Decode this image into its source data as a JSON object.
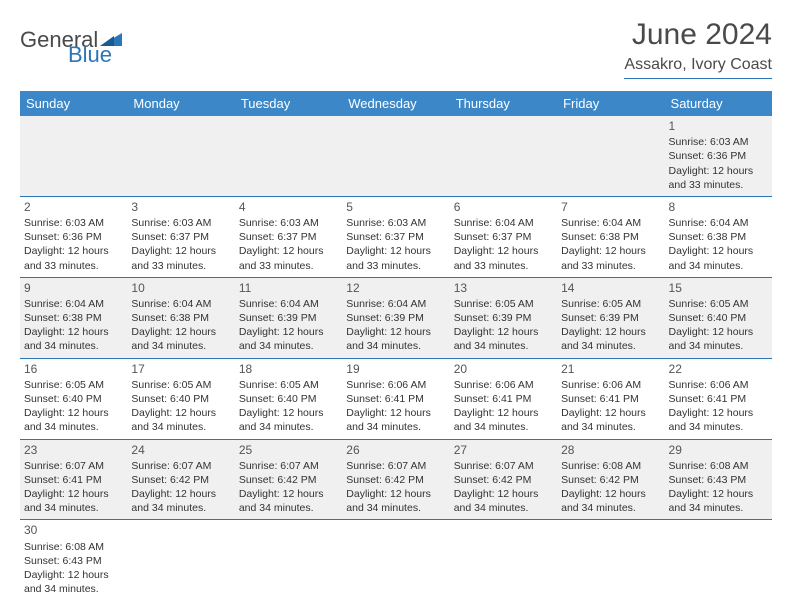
{
  "logo": {
    "general": "General",
    "blue": "Blue"
  },
  "title": "June 2024",
  "subtitle": "Assakro, Ivory Coast",
  "colors": {
    "header_bg": "#3b87c8",
    "accent": "#2a76b8",
    "row_alt": "#f0f0f0",
    "text": "#333333"
  },
  "day_headers": [
    "Sunday",
    "Monday",
    "Tuesday",
    "Wednesday",
    "Thursday",
    "Friday",
    "Saturday"
  ],
  "weeks": [
    [
      null,
      null,
      null,
      null,
      null,
      null,
      {
        "n": "1",
        "sr": "Sunrise: 6:03 AM",
        "ss": "Sunset: 6:36 PM",
        "d1": "Daylight: 12 hours",
        "d2": "and 33 minutes."
      }
    ],
    [
      {
        "n": "2",
        "sr": "Sunrise: 6:03 AM",
        "ss": "Sunset: 6:36 PM",
        "d1": "Daylight: 12 hours",
        "d2": "and 33 minutes."
      },
      {
        "n": "3",
        "sr": "Sunrise: 6:03 AM",
        "ss": "Sunset: 6:37 PM",
        "d1": "Daylight: 12 hours",
        "d2": "and 33 minutes."
      },
      {
        "n": "4",
        "sr": "Sunrise: 6:03 AM",
        "ss": "Sunset: 6:37 PM",
        "d1": "Daylight: 12 hours",
        "d2": "and 33 minutes."
      },
      {
        "n": "5",
        "sr": "Sunrise: 6:03 AM",
        "ss": "Sunset: 6:37 PM",
        "d1": "Daylight: 12 hours",
        "d2": "and 33 minutes."
      },
      {
        "n": "6",
        "sr": "Sunrise: 6:04 AM",
        "ss": "Sunset: 6:37 PM",
        "d1": "Daylight: 12 hours",
        "d2": "and 33 minutes."
      },
      {
        "n": "7",
        "sr": "Sunrise: 6:04 AM",
        "ss": "Sunset: 6:38 PM",
        "d1": "Daylight: 12 hours",
        "d2": "and 33 minutes."
      },
      {
        "n": "8",
        "sr": "Sunrise: 6:04 AM",
        "ss": "Sunset: 6:38 PM",
        "d1": "Daylight: 12 hours",
        "d2": "and 34 minutes."
      }
    ],
    [
      {
        "n": "9",
        "sr": "Sunrise: 6:04 AM",
        "ss": "Sunset: 6:38 PM",
        "d1": "Daylight: 12 hours",
        "d2": "and 34 minutes."
      },
      {
        "n": "10",
        "sr": "Sunrise: 6:04 AM",
        "ss": "Sunset: 6:38 PM",
        "d1": "Daylight: 12 hours",
        "d2": "and 34 minutes."
      },
      {
        "n": "11",
        "sr": "Sunrise: 6:04 AM",
        "ss": "Sunset: 6:39 PM",
        "d1": "Daylight: 12 hours",
        "d2": "and 34 minutes."
      },
      {
        "n": "12",
        "sr": "Sunrise: 6:04 AM",
        "ss": "Sunset: 6:39 PM",
        "d1": "Daylight: 12 hours",
        "d2": "and 34 minutes."
      },
      {
        "n": "13",
        "sr": "Sunrise: 6:05 AM",
        "ss": "Sunset: 6:39 PM",
        "d1": "Daylight: 12 hours",
        "d2": "and 34 minutes."
      },
      {
        "n": "14",
        "sr": "Sunrise: 6:05 AM",
        "ss": "Sunset: 6:39 PM",
        "d1": "Daylight: 12 hours",
        "d2": "and 34 minutes."
      },
      {
        "n": "15",
        "sr": "Sunrise: 6:05 AM",
        "ss": "Sunset: 6:40 PM",
        "d1": "Daylight: 12 hours",
        "d2": "and 34 minutes."
      }
    ],
    [
      {
        "n": "16",
        "sr": "Sunrise: 6:05 AM",
        "ss": "Sunset: 6:40 PM",
        "d1": "Daylight: 12 hours",
        "d2": "and 34 minutes."
      },
      {
        "n": "17",
        "sr": "Sunrise: 6:05 AM",
        "ss": "Sunset: 6:40 PM",
        "d1": "Daylight: 12 hours",
        "d2": "and 34 minutes."
      },
      {
        "n": "18",
        "sr": "Sunrise: 6:05 AM",
        "ss": "Sunset: 6:40 PM",
        "d1": "Daylight: 12 hours",
        "d2": "and 34 minutes."
      },
      {
        "n": "19",
        "sr": "Sunrise: 6:06 AM",
        "ss": "Sunset: 6:41 PM",
        "d1": "Daylight: 12 hours",
        "d2": "and 34 minutes."
      },
      {
        "n": "20",
        "sr": "Sunrise: 6:06 AM",
        "ss": "Sunset: 6:41 PM",
        "d1": "Daylight: 12 hours",
        "d2": "and 34 minutes."
      },
      {
        "n": "21",
        "sr": "Sunrise: 6:06 AM",
        "ss": "Sunset: 6:41 PM",
        "d1": "Daylight: 12 hours",
        "d2": "and 34 minutes."
      },
      {
        "n": "22",
        "sr": "Sunrise: 6:06 AM",
        "ss": "Sunset: 6:41 PM",
        "d1": "Daylight: 12 hours",
        "d2": "and 34 minutes."
      }
    ],
    [
      {
        "n": "23",
        "sr": "Sunrise: 6:07 AM",
        "ss": "Sunset: 6:41 PM",
        "d1": "Daylight: 12 hours",
        "d2": "and 34 minutes."
      },
      {
        "n": "24",
        "sr": "Sunrise: 6:07 AM",
        "ss": "Sunset: 6:42 PM",
        "d1": "Daylight: 12 hours",
        "d2": "and 34 minutes."
      },
      {
        "n": "25",
        "sr": "Sunrise: 6:07 AM",
        "ss": "Sunset: 6:42 PM",
        "d1": "Daylight: 12 hours",
        "d2": "and 34 minutes."
      },
      {
        "n": "26",
        "sr": "Sunrise: 6:07 AM",
        "ss": "Sunset: 6:42 PM",
        "d1": "Daylight: 12 hours",
        "d2": "and 34 minutes."
      },
      {
        "n": "27",
        "sr": "Sunrise: 6:07 AM",
        "ss": "Sunset: 6:42 PM",
        "d1": "Daylight: 12 hours",
        "d2": "and 34 minutes."
      },
      {
        "n": "28",
        "sr": "Sunrise: 6:08 AM",
        "ss": "Sunset: 6:42 PM",
        "d1": "Daylight: 12 hours",
        "d2": "and 34 minutes."
      },
      {
        "n": "29",
        "sr": "Sunrise: 6:08 AM",
        "ss": "Sunset: 6:43 PM",
        "d1": "Daylight: 12 hours",
        "d2": "and 34 minutes."
      }
    ],
    [
      {
        "n": "30",
        "sr": "Sunrise: 6:08 AM",
        "ss": "Sunset: 6:43 PM",
        "d1": "Daylight: 12 hours",
        "d2": "and 34 minutes."
      },
      null,
      null,
      null,
      null,
      null,
      null
    ]
  ]
}
